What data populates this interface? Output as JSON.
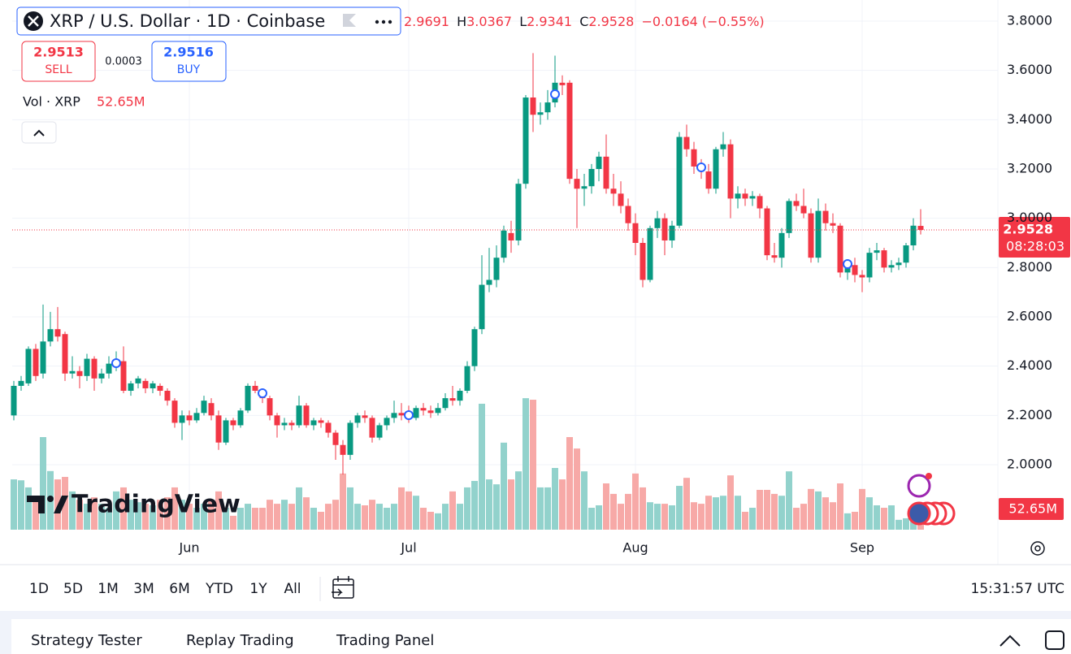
{
  "chart_data": {
    "type": "candlestick",
    "title": "XRP / U.S. Dollar · 1D · Coinbase",
    "ohlc_legend": [
      {
        "value": "2.9691"
      },
      {
        "key": "H",
        "value": "3.0367"
      },
      {
        "key": "L",
        "value": "2.9341"
      },
      {
        "key": "C",
        "value": "2.9528"
      },
      {
        "value": "−0.0164 (−0.55%)"
      }
    ],
    "sell": {
      "price": "2.9513",
      "label": "SELL"
    },
    "spread": "0.0003",
    "buy": {
      "price": "2.9516",
      "label": "BUY"
    },
    "volume_legend": {
      "label": "Vol · XRP",
      "value": "52.65M"
    },
    "last_price_tag": {
      "price": "2.9528",
      "countdown": "08:28:03"
    },
    "volume_tag": "52.65M",
    "watermark": "TradingView",
    "up_color": "#089981",
    "down_color": "#f23645",
    "volume_up_color": "#92d2cc",
    "volume_down_color": "#f7a9a7",
    "grid": true,
    "categories": [
      null,
      null,
      null,
      null,
      null,
      null,
      null,
      null,
      null,
      null,
      null,
      null,
      null,
      null,
      null,
      null,
      null,
      null,
      null,
      null,
      null,
      null,
      null,
      null,
      "Jun",
      null,
      null,
      null,
      null,
      null,
      null,
      null,
      null,
      null,
      null,
      null,
      null,
      null,
      null,
      null,
      null,
      null,
      null,
      null,
      null,
      null,
      null,
      null,
      null,
      null,
      null,
      null,
      null,
      null,
      "Jul",
      null,
      null,
      null,
      null,
      null,
      null,
      null,
      null,
      null,
      null,
      null,
      null,
      null,
      null,
      null,
      null,
      null,
      null,
      null,
      null,
      null,
      null,
      null,
      null,
      null,
      null,
      null,
      null,
      null,
      null,
      "Aug",
      null,
      null,
      null,
      null,
      null,
      null,
      null,
      null,
      null,
      null,
      null,
      null,
      null,
      null,
      null,
      null,
      null,
      null,
      null,
      null,
      null,
      null,
      null,
      null,
      null,
      null,
      null,
      null,
      null,
      null,
      "Sep",
      null,
      null,
      null,
      null,
      null,
      null,
      null,
      null
    ],
    "open": [
      2.2,
      2.32,
      2.33,
      2.47,
      2.37,
      2.5,
      2.55,
      2.53,
      2.37,
      2.38,
      2.36,
      2.43,
      2.35,
      2.37,
      2.4,
      2.42,
      2.3,
      2.33,
      2.34,
      2.31,
      2.32,
      2.3,
      2.26,
      2.17,
      2.2,
      2.18,
      2.21,
      2.25,
      2.2,
      2.09,
      2.18,
      2.16,
      2.22,
      2.32,
      2.3,
      2.27,
      2.2,
      2.16,
      2.17,
      2.16,
      2.24,
      2.16,
      2.18,
      2.17,
      2.13,
      2.08,
      2.04,
      2.17,
      2.2,
      2.19,
      2.11,
      2.16,
      2.19,
      2.21,
      2.2,
      2.19,
      2.23,
      2.22,
      2.21,
      2.23,
      2.27,
      2.26,
      2.3,
      2.4,
      2.55,
      2.73,
      2.75,
      2.84,
      2.94,
      2.91,
      3.14,
      3.49,
      3.42,
      3.43,
      3.47,
      3.55,
      3.55,
      3.16,
      3.12,
      3.13,
      3.2,
      3.25,
      3.12,
      3.1,
      3.05,
      2.98,
      2.9,
      2.75,
      2.96,
      3.0,
      2.91,
      2.97,
      3.33,
      3.28,
      3.21,
      3.19,
      3.12,
      3.28,
      3.3,
      3.08,
      3.1,
      3.08,
      3.09,
      3.04,
      2.85,
      2.84,
      2.94,
      3.07,
      3.05,
      3.02,
      2.84,
      3.03,
      2.98,
      2.97,
      2.78,
      2.81,
      2.77,
      2.76,
      2.86,
      2.87,
      2.8,
      2.81,
      2.82,
      2.89,
      2.9691
    ],
    "high": [
      2.34,
      2.36,
      2.48,
      2.49,
      2.65,
      2.62,
      2.64,
      2.54,
      2.44,
      2.4,
      2.45,
      2.44,
      2.39,
      2.44,
      2.46,
      2.48,
      2.34,
      2.36,
      2.35,
      2.34,
      2.33,
      2.31,
      2.27,
      2.22,
      2.22,
      2.23,
      2.28,
      2.27,
      2.22,
      2.19,
      2.19,
      2.23,
      2.33,
      2.34,
      2.31,
      2.28,
      2.21,
      2.19,
      2.18,
      2.28,
      2.25,
      2.19,
      2.19,
      2.18,
      2.14,
      2.1,
      2.18,
      2.21,
      2.22,
      2.2,
      2.17,
      2.2,
      2.26,
      2.25,
      2.24,
      2.24,
      2.25,
      2.24,
      2.25,
      2.29,
      2.32,
      2.31,
      2.42,
      2.56,
      2.85,
      2.88,
      2.89,
      2.97,
      2.99,
      3.16,
      3.5,
      3.67,
      3.47,
      3.52,
      3.66,
      3.58,
      3.56,
      3.2,
      3.18,
      3.22,
      3.27,
      3.34,
      3.18,
      3.15,
      3.08,
      3.02,
      2.92,
      2.97,
      3.03,
      3.02,
      2.99,
      3.35,
      3.38,
      3.31,
      3.24,
      3.22,
      3.29,
      3.35,
      3.32,
      3.13,
      3.12,
      3.11,
      3.1,
      3.05,
      2.9,
      2.96,
      3.08,
      3.1,
      3.12,
      3.04,
      3.08,
      3.06,
      3.02,
      2.98,
      2.83,
      2.84,
      2.79,
      2.88,
      2.9,
      2.88,
      2.83,
      2.84,
      2.9,
      3.0,
      3.0367
    ],
    "low": [
      2.18,
      2.3,
      2.32,
      2.34,
      2.35,
      2.48,
      2.5,
      2.34,
      2.35,
      2.31,
      2.34,
      2.3,
      2.33,
      2.35,
      2.38,
      2.29,
      2.28,
      2.31,
      2.29,
      2.29,
      2.28,
      2.24,
      2.15,
      2.1,
      2.16,
      2.17,
      2.2,
      2.18,
      2.06,
      2.08,
      2.14,
      2.15,
      2.21,
      2.29,
      2.25,
      2.18,
      2.11,
      2.14,
      2.14,
      2.15,
      2.15,
      2.14,
      2.15,
      2.11,
      2.02,
      1.96,
      2.02,
      2.15,
      2.17,
      2.09,
      2.1,
      2.14,
      2.17,
      2.18,
      2.17,
      2.18,
      2.2,
      2.19,
      2.2,
      2.22,
      2.24,
      2.24,
      2.29,
      2.38,
      2.53,
      2.7,
      2.72,
      2.82,
      2.86,
      2.89,
      3.12,
      3.35,
      3.38,
      3.4,
      3.45,
      3.5,
      3.14,
      2.96,
      3.05,
      3.1,
      3.15,
      3.1,
      3.05,
      3.02,
      2.95,
      2.85,
      2.72,
      2.74,
      2.92,
      2.85,
      2.88,
      2.96,
      3.25,
      3.18,
      3.16,
      3.1,
      3.1,
      3.25,
      3.0,
      3.04,
      3.05,
      3.05,
      3.0,
      2.83,
      2.82,
      2.8,
      2.92,
      3.03,
      3.0,
      2.82,
      2.82,
      2.95,
      2.94,
      2.76,
      2.75,
      2.74,
      2.7,
      2.74,
      2.83,
      2.78,
      2.78,
      2.79,
      2.8,
      2.87,
      2.9341
    ],
    "close": [
      2.32,
      2.34,
      2.47,
      2.36,
      2.5,
      2.55,
      2.52,
      2.37,
      2.38,
      2.36,
      2.43,
      2.35,
      2.37,
      2.41,
      2.41,
      2.3,
      2.33,
      2.35,
      2.31,
      2.33,
      2.3,
      2.26,
      2.17,
      2.2,
      2.18,
      2.21,
      2.26,
      2.2,
      2.09,
      2.18,
      2.16,
      2.22,
      2.32,
      2.3,
      2.27,
      2.2,
      2.16,
      2.17,
      2.16,
      2.24,
      2.16,
      2.18,
      2.17,
      2.13,
      2.08,
      2.04,
      2.17,
      2.2,
      2.19,
      2.11,
      2.16,
      2.19,
      2.21,
      2.2,
      2.19,
      2.23,
      2.22,
      2.21,
      2.23,
      2.27,
      2.26,
      2.3,
      2.4,
      2.55,
      2.73,
      2.75,
      2.84,
      2.95,
      2.91,
      3.14,
      3.49,
      3.42,
      3.43,
      3.47,
      3.55,
      3.54,
      3.16,
      3.12,
      3.13,
      3.2,
      3.25,
      3.12,
      3.1,
      3.05,
      2.98,
      2.9,
      2.75,
      2.96,
      3.0,
      2.91,
      2.97,
      3.33,
      3.28,
      3.21,
      3.19,
      3.12,
      3.28,
      3.3,
      3.08,
      3.1,
      3.08,
      3.09,
      3.04,
      2.85,
      2.84,
      2.94,
      3.07,
      3.05,
      3.02,
      2.84,
      3.03,
      2.98,
      2.97,
      2.78,
      2.81,
      2.77,
      2.76,
      2.86,
      2.87,
      2.8,
      2.81,
      2.82,
      2.89,
      2.97,
      2.9528
    ],
    "volume": [
      163,
      160,
      137,
      110,
      300,
      190,
      163,
      171,
      124,
      97,
      84,
      105,
      84,
      71,
      124,
      137,
      97,
      89,
      84,
      79,
      97,
      105,
      137,
      97,
      84,
      71,
      84,
      97,
      124,
      71,
      45,
      71,
      84,
      71,
      71,
      97,
      84,
      97,
      84,
      137,
      105,
      71,
      58,
      84,
      97,
      182,
      137,
      84,
      79,
      97,
      84,
      71,
      84,
      137,
      124,
      110,
      71,
      58,
      53,
      84,
      124,
      84,
      137,
      158,
      408,
      163,
      147,
      282,
      163,
      189,
      426,
      421,
      137,
      137,
      200,
      163,
      300,
      263,
      189,
      71,
      79,
      150,
      116,
      84,
      116,
      182,
      137,
      89,
      84,
      84,
      79,
      142,
      168,
      89,
      84,
      110,
      105,
      110,
      176,
      110,
      58,
      71,
      129,
      129,
      116,
      110,
      189,
      71,
      84,
      132,
      124,
      105,
      89,
      150,
      53,
      58,
      132,
      105,
      79,
      71,
      79,
      32,
      37,
      58,
      52.65
    ],
    "volume_ylim": [
      0,
      500
    ],
    "ylim": [
      1.7363,
      3.8593
    ],
    "yticks": [
      {
        "value": 2.0,
        "label": "2.0000"
      },
      {
        "value": 2.2,
        "label": "2.2000"
      },
      {
        "value": 2.4,
        "label": "2.4000"
      },
      {
        "value": 2.6,
        "label": "2.6000"
      },
      {
        "value": 2.8,
        "label": "2.8000"
      },
      {
        "value": 3.0,
        "label": "3.0000"
      },
      {
        "value": 3.2,
        "label": "3.2000"
      },
      {
        "value": 3.4,
        "label": "3.4000"
      },
      {
        "value": 3.6,
        "label": "3.6000"
      },
      {
        "value": 3.8,
        "label": "3.8000"
      }
    ]
  },
  "toolbar": {
    "ranges": [
      "1D",
      "5D",
      "1M",
      "3M",
      "6M",
      "YTD",
      "1Y",
      "All"
    ],
    "clock": "15:31:57 UTC"
  },
  "bottom_tabs": [
    "Strategy Tester",
    "Replay Trading",
    "Trading Panel"
  ]
}
